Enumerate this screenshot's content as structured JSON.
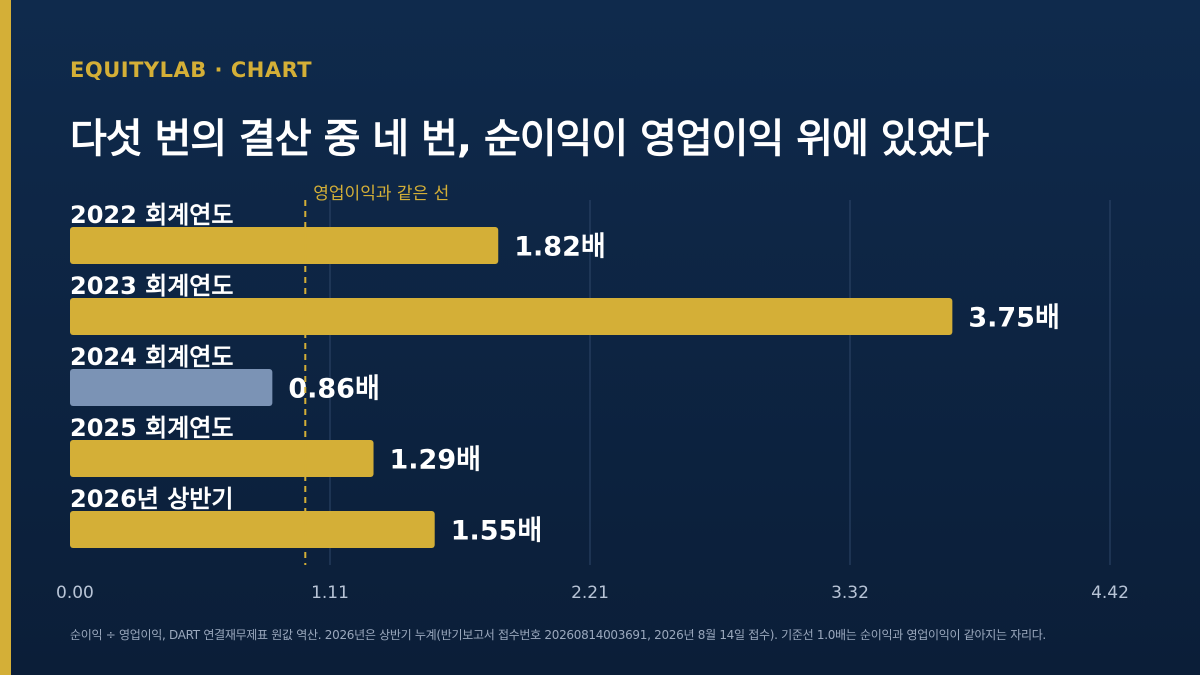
{
  "brand": {
    "kicker": "EQUITYLAB · CHART",
    "accent_color": "#d4af37"
  },
  "headline": "다섯 번의 결산 중 네 번, 순이익이 영업이익 위에 있었다",
  "footnote": "순이익 ÷ 영업이익, DART 연결재무제표 원값 역산. 2026년은 상반기 누계(반기보고서 접수번호 20260814003691, 2026년 8월 14일 접수). 기준선 1.0배는 순이익과 영업이익이 같아지는 자리다.",
  "chart_data": {
    "type": "bar",
    "orientation": "horizontal",
    "categories": [
      "2022 회계연도",
      "2023 회계연도",
      "2024 회계연도",
      "2025 회계연도",
      "2026년 상반기"
    ],
    "values": [
      1.82,
      3.75,
      0.86,
      1.29,
      1.55
    ],
    "value_labels": [
      "1.82배",
      "3.75배",
      "0.86배",
      "1.29배",
      "1.55배"
    ],
    "xlim": [
      0,
      4.42
    ],
    "x_ticks": [
      "0.00",
      "1.11",
      "2.21",
      "3.32",
      "4.42"
    ],
    "reference_line": {
      "value": 1.0,
      "label": "영업이익과 같은 선"
    },
    "grid": true,
    "colors": {
      "above": "#d4af37",
      "below": "#7b93b5",
      "text": "#ffffff",
      "axis_text": "#b8c4d6",
      "grid": "#2e4669"
    }
  }
}
